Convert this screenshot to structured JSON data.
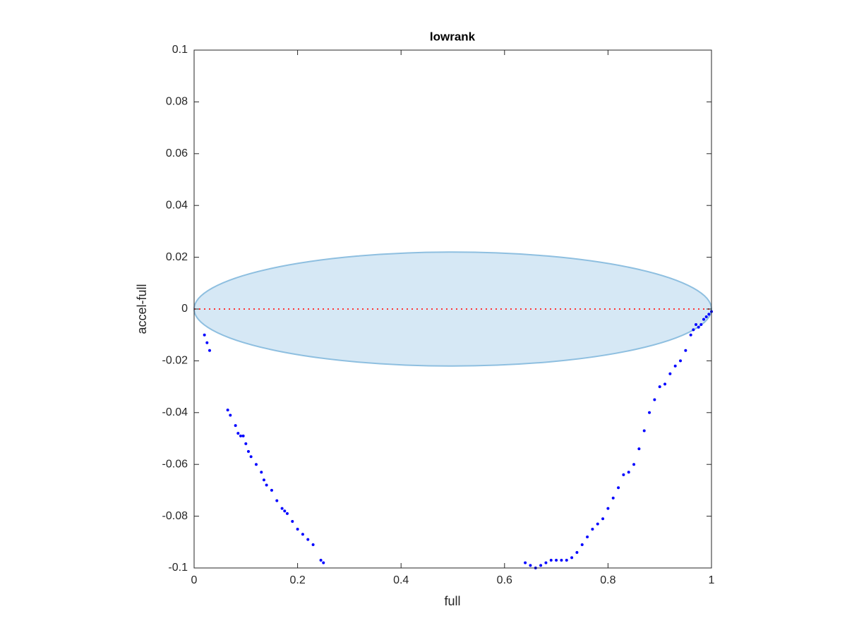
{
  "chart_data": {
    "type": "scatter",
    "title": "lowrank",
    "x_label": "full",
    "y_label": "accel-full",
    "xlim": [
      0,
      1
    ],
    "ylim": [
      -0.1,
      0.1
    ],
    "xticks": [
      0,
      0.2,
      0.4,
      0.6,
      0.8,
      1
    ],
    "yticks": [
      -0.1,
      -0.08,
      -0.06,
      -0.04,
      -0.02,
      0,
      0.02,
      0.04,
      0.06,
      0.08,
      0.1
    ],
    "ellipse": {
      "cx": 0.5,
      "cy": 0,
      "rx": 0.5,
      "ry": 0.022,
      "color": "#d6e8f5",
      "edge_color": "#8ebfe0"
    },
    "reference_line": {
      "value": 0,
      "color": "#ff3333"
    },
    "series": [
      {
        "color": "#0000ff",
        "x": [
          0.02,
          0.025,
          0.03,
          0.065,
          0.07,
          0.08,
          0.085,
          0.09,
          0.095,
          0.1,
          0.105,
          0.11,
          0.12,
          0.13,
          0.135,
          0.14,
          0.15,
          0.16,
          0.17,
          0.175,
          0.18,
          0.19,
          0.2,
          0.21,
          0.22,
          0.23,
          0.245,
          0.25,
          0.64,
          0.65,
          0.66,
          0.67,
          0.68,
          0.69,
          0.7,
          0.71,
          0.72,
          0.73,
          0.74,
          0.75,
          0.76,
          0.77,
          0.78,
          0.79,
          0.8,
          0.81,
          0.82,
          0.83,
          0.84,
          0.85,
          0.86,
          0.87,
          0.88,
          0.89,
          0.9,
          0.91,
          0.92,
          0.93,
          0.94,
          0.95,
          0.96,
          0.965,
          0.97,
          0.975,
          0.98,
          0.985,
          0.99,
          0.995,
          1.0
        ],
        "values": [
          -0.01,
          -0.013,
          -0.016,
          -0.039,
          -0.041,
          -0.045,
          -0.048,
          -0.049,
          -0.049,
          -0.052,
          -0.055,
          -0.057,
          -0.06,
          -0.063,
          -0.066,
          -0.068,
          -0.07,
          -0.074,
          -0.077,
          -0.078,
          -0.079,
          -0.082,
          -0.085,
          -0.087,
          -0.089,
          -0.091,
          -0.097,
          -0.098,
          -0.098,
          -0.099,
          -0.1,
          -0.099,
          -0.098,
          -0.097,
          -0.097,
          -0.097,
          -0.097,
          -0.096,
          -0.094,
          -0.091,
          -0.088,
          -0.085,
          -0.083,
          -0.081,
          -0.077,
          -0.073,
          -0.069,
          -0.064,
          -0.063,
          -0.06,
          -0.054,
          -0.047,
          -0.04,
          -0.035,
          -0.03,
          -0.029,
          -0.025,
          -0.022,
          -0.02,
          -0.016,
          -0.01,
          -0.008,
          -0.006,
          -0.007,
          -0.006,
          -0.004,
          -0.003,
          -0.002,
          -0.001
        ]
      }
    ]
  }
}
